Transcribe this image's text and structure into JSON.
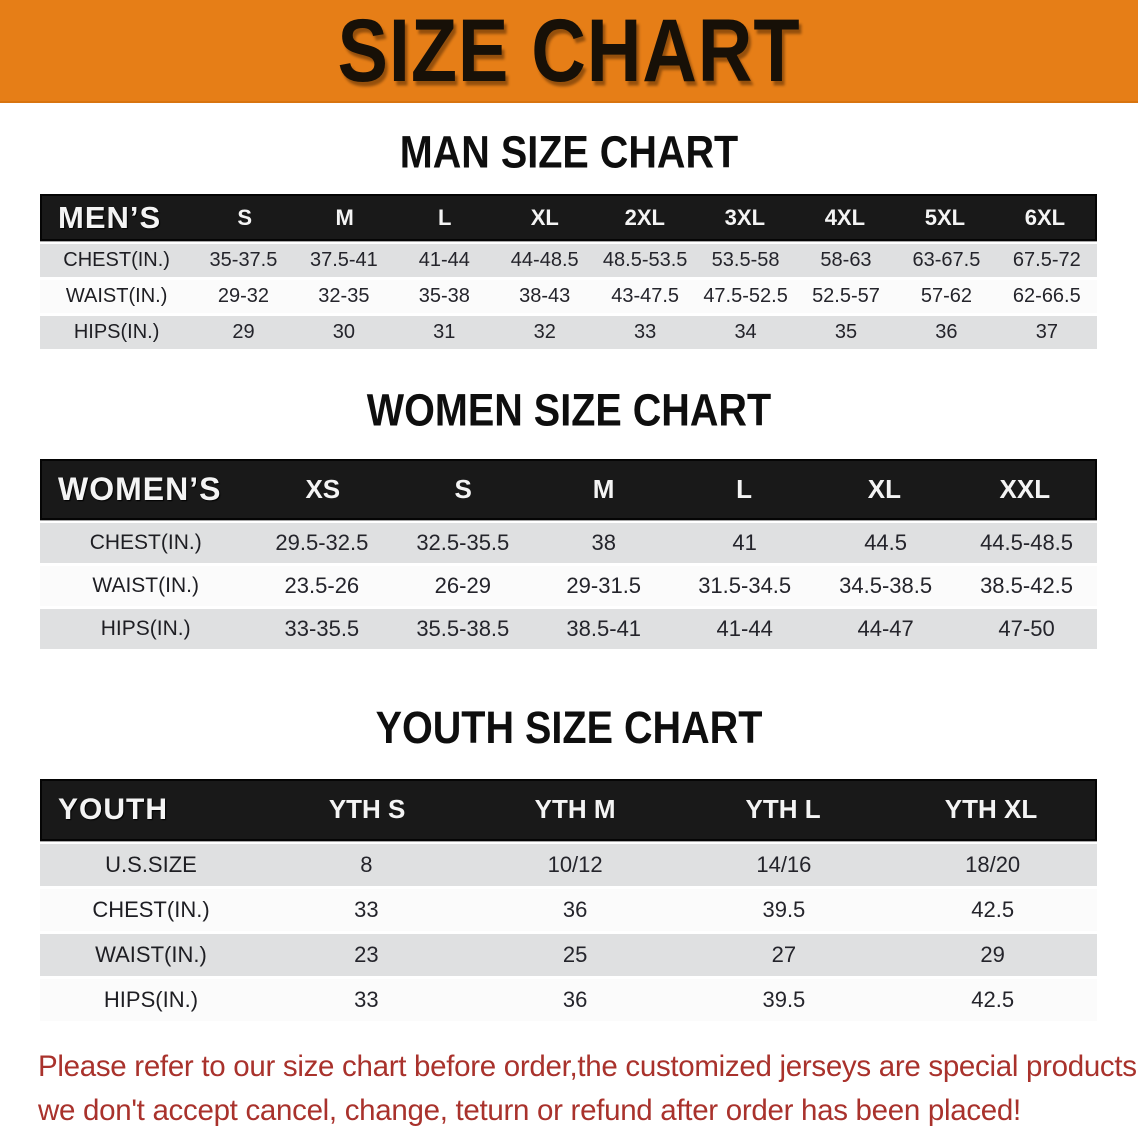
{
  "banner": {
    "title": "SIZE CHART",
    "bg_color": "#e67e17",
    "text_color": "#171007"
  },
  "sections": [
    {
      "id": "men",
      "heading": "MAN SIZE CHART",
      "table": {
        "header_label": "MEN’S",
        "columns": [
          "S",
          "M",
          "L",
          "XL",
          "2XL",
          "3XL",
          "4XL",
          "5XL",
          "6XL"
        ],
        "rows": [
          {
            "label": "CHEST(IN.)",
            "values": [
              "35-37.5",
              "37.5-41",
              "41-44",
              "44-48.5",
              "48.5-53.5",
              "53.5-58",
              "58-63",
              "63-67.5",
              "67.5-72"
            ]
          },
          {
            "label": "WAIST(IN.)",
            "values": [
              "29-32",
              "32-35",
              "35-38",
              "38-43",
              "43-47.5",
              "47.5-52.5",
              "52.5-57",
              "57-62",
              "62-66.5"
            ]
          },
          {
            "label": "HIPS(IN.)",
            "values": [
              "29",
              "30",
              "31",
              "32",
              "33",
              "34",
              "35",
              "36",
              "37"
            ]
          }
        ]
      }
    },
    {
      "id": "women",
      "heading": "WOMEN SIZE CHART",
      "table": {
        "header_label": "WOMEN’S",
        "columns": [
          "XS",
          "S",
          "M",
          "L",
          "XL",
          "XXL"
        ],
        "rows": [
          {
            "label": "CHEST(IN.)",
            "values": [
              "29.5-32.5",
              "32.5-35.5",
              "38",
              "41",
              "44.5",
              "44.5-48.5"
            ]
          },
          {
            "label": "WAIST(IN.)",
            "values": [
              "23.5-26",
              "26-29",
              "29-31.5",
              "31.5-34.5",
              "34.5-38.5",
              "38.5-42.5"
            ]
          },
          {
            "label": "HIPS(IN.)",
            "values": [
              "33-35.5",
              "35.5-38.5",
              "38.5-41",
              "41-44",
              "44-47",
              "47-50"
            ]
          }
        ]
      }
    },
    {
      "id": "youth",
      "heading": "YOUTH SIZE CHART",
      "table": {
        "header_label": "YOUTH",
        "columns": [
          "YTH S",
          "YTH M",
          "YTH L",
          "YTH XL"
        ],
        "rows": [
          {
            "label": "U.S.SIZE",
            "values": [
              "8",
              "10/12",
              "14/16",
              "18/20"
            ]
          },
          {
            "label": "CHEST(IN.)",
            "values": [
              "33",
              "36",
              "39.5",
              "42.5"
            ]
          },
          {
            "label": "WAIST(IN.)",
            "values": [
              "23",
              "25",
              "27",
              "29"
            ]
          },
          {
            "label": "HIPS(IN.)",
            "values": [
              "33",
              "36",
              "39.5",
              "42.5"
            ]
          }
        ]
      }
    }
  ],
  "table_colors": {
    "header_bg": "#191919",
    "header_text": "#f4f4f4",
    "row_alt": "#dfe0e1",
    "row_base": "#fbfbfb"
  },
  "disclaimer": {
    "line1": "Please refer to our size chart before order,the customized jerseys are special products,",
    "line2": "we don't accept cancel, change, teturn or refund after order has been placed!",
    "text_color": "#a9322c"
  }
}
